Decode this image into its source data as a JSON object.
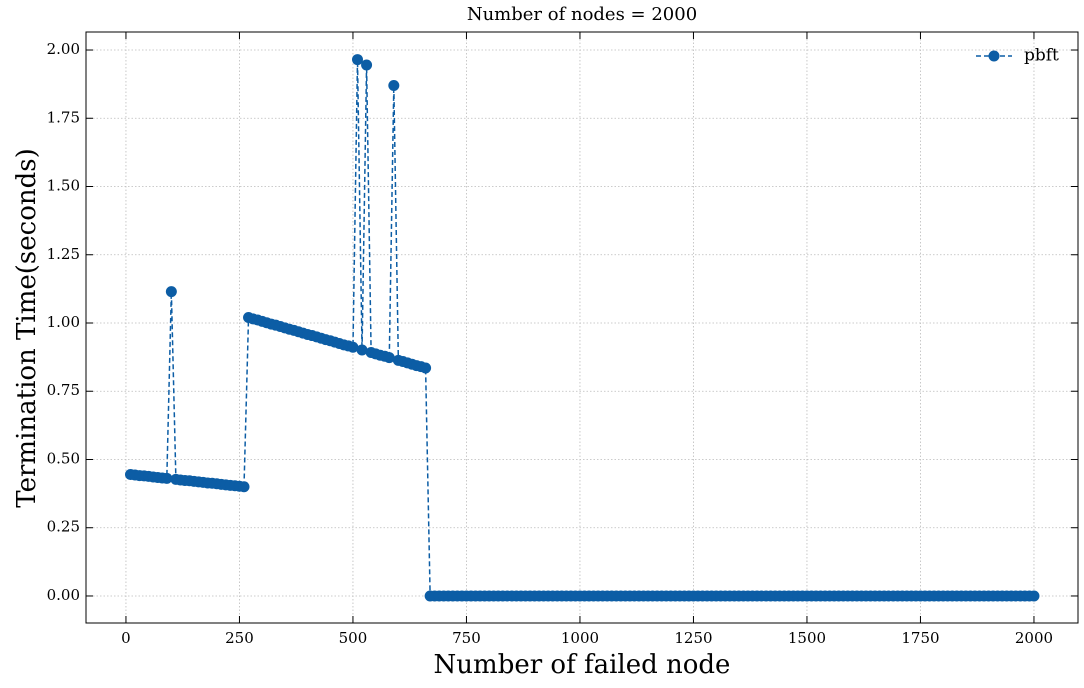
{
  "chart_data": {
    "type": "line",
    "title": "Number of nodes = 2000",
    "xlabel": "Number of failed node",
    "ylabel": "Termination Time(seconds)",
    "legend": "upper right",
    "grid": true,
    "xlim": [
      -88,
      2097
    ],
    "ylim": [
      -0.099,
      2.066
    ],
    "xticks": [
      0,
      250,
      500,
      750,
      1000,
      1250,
      1500,
      1750,
      2000
    ],
    "yticks": [
      {
        "value": 0,
        "label": "0.00"
      },
      {
        "value": 0.25,
        "label": "0.25"
      },
      {
        "value": 0.5,
        "label": "0.50"
      },
      {
        "value": 0.75,
        "label": "0.75"
      },
      {
        "value": 1,
        "label": "1.00"
      },
      {
        "value": 1.25,
        "label": "1.25"
      },
      {
        "value": 1.5,
        "label": "1.50"
      },
      {
        "value": 1.75,
        "label": "1.75"
      },
      {
        "value": 2,
        "label": "2.00"
      }
    ],
    "x": [
      10,
      20,
      30,
      40,
      50,
      60,
      70,
      80,
      90,
      100,
      110,
      120,
      130,
      140,
      150,
      160,
      170,
      180,
      190,
      200,
      210,
      220,
      230,
      240,
      250,
      260,
      270,
      280,
      290,
      300,
      310,
      320,
      330,
      340,
      350,
      360,
      370,
      380,
      390,
      400,
      410,
      420,
      430,
      440,
      450,
      460,
      470,
      480,
      490,
      500,
      510,
      520,
      530,
      540,
      550,
      560,
      570,
      580,
      590,
      600,
      610,
      620,
      630,
      640,
      650,
      660,
      670,
      680,
      690,
      700,
      710,
      720,
      730,
      740,
      750,
      760,
      770,
      780,
      790,
      800,
      810,
      820,
      830,
      840,
      850,
      860,
      870,
      880,
      890,
      900,
      910,
      920,
      930,
      940,
      950,
      960,
      970,
      980,
      990,
      1000,
      1010,
      1020,
      1030,
      1040,
      1050,
      1060,
      1070,
      1080,
      1090,
      1100,
      1110,
      1120,
      1130,
      1140,
      1150,
      1160,
      1170,
      1180,
      1190,
      1200,
      1210,
      1220,
      1230,
      1240,
      1250,
      1260,
      1270,
      1280,
      1290,
      1300,
      1310,
      1320,
      1330,
      1340,
      1350,
      1360,
      1370,
      1380,
      1390,
      1400,
      1410,
      1420,
      1430,
      1440,
      1450,
      1460,
      1470,
      1480,
      1490,
      1500,
      1510,
      1520,
      1530,
      1540,
      1550,
      1560,
      1570,
      1580,
      1590,
      1600,
      1610,
      1620,
      1630,
      1640,
      1650,
      1660,
      1670,
      1680,
      1690,
      1700,
      1710,
      1720,
      1730,
      1740,
      1750,
      1760,
      1770,
      1780,
      1790,
      1800,
      1810,
      1820,
      1830,
      1840,
      1850,
      1860,
      1870,
      1880,
      1890,
      1900,
      1910,
      1920,
      1930,
      1940,
      1950,
      1960,
      1970,
      1980,
      1990,
      2000
    ],
    "series": [
      {
        "name": "pbft",
        "color": "#0c5da5",
        "values": [
          0.445,
          0.443,
          0.441,
          0.44,
          0.438,
          0.436,
          0.434,
          0.432,
          0.431,
          1.115,
          0.427,
          0.425,
          0.423,
          0.422,
          0.42,
          0.418,
          0.416,
          0.414,
          0.413,
          0.411,
          0.409,
          0.407,
          0.405,
          0.404,
          0.402,
          0.4,
          1.02,
          1.015,
          1.011,
          1.006,
          1.001,
          0.996,
          0.992,
          0.987,
          0.982,
          0.977,
          0.973,
          0.968,
          0.963,
          0.958,
          0.954,
          0.949,
          0.944,
          0.939,
          0.935,
          0.93,
          0.925,
          0.92,
          0.916,
          0.911,
          1.965,
          0.901,
          1.945,
          0.892,
          0.887,
          0.882,
          0.878,
          0.873,
          1.87,
          0.863,
          0.859,
          0.854,
          0.849,
          0.844,
          0.84,
          0.835,
          0,
          0,
          0,
          0,
          0,
          0,
          0,
          0,
          0,
          0,
          0,
          0,
          0,
          0,
          0,
          0,
          0,
          0,
          0,
          0,
          0,
          0,
          0,
          0,
          0,
          0,
          0,
          0,
          0,
          0,
          0,
          0,
          0,
          0,
          0,
          0,
          0,
          0,
          0,
          0,
          0,
          0,
          0,
          0,
          0,
          0,
          0,
          0,
          0,
          0,
          0,
          0,
          0,
          0,
          0,
          0,
          0,
          0,
          0,
          0,
          0,
          0,
          0,
          0,
          0,
          0,
          0,
          0,
          0,
          0,
          0,
          0,
          0,
          0,
          0,
          0,
          0,
          0,
          0,
          0,
          0,
          0,
          0,
          0,
          0,
          0,
          0,
          0,
          0,
          0,
          0,
          0,
          0,
          0,
          0,
          0,
          0,
          0,
          0,
          0,
          0,
          0,
          0,
          0,
          0,
          0,
          0,
          0,
          0,
          0,
          0,
          0,
          0,
          0,
          0,
          0,
          0,
          0,
          0,
          0,
          0,
          0,
          0,
          0,
          0,
          0,
          0,
          0,
          0,
          0,
          0,
          0,
          0,
          0
        ]
      }
    ]
  }
}
